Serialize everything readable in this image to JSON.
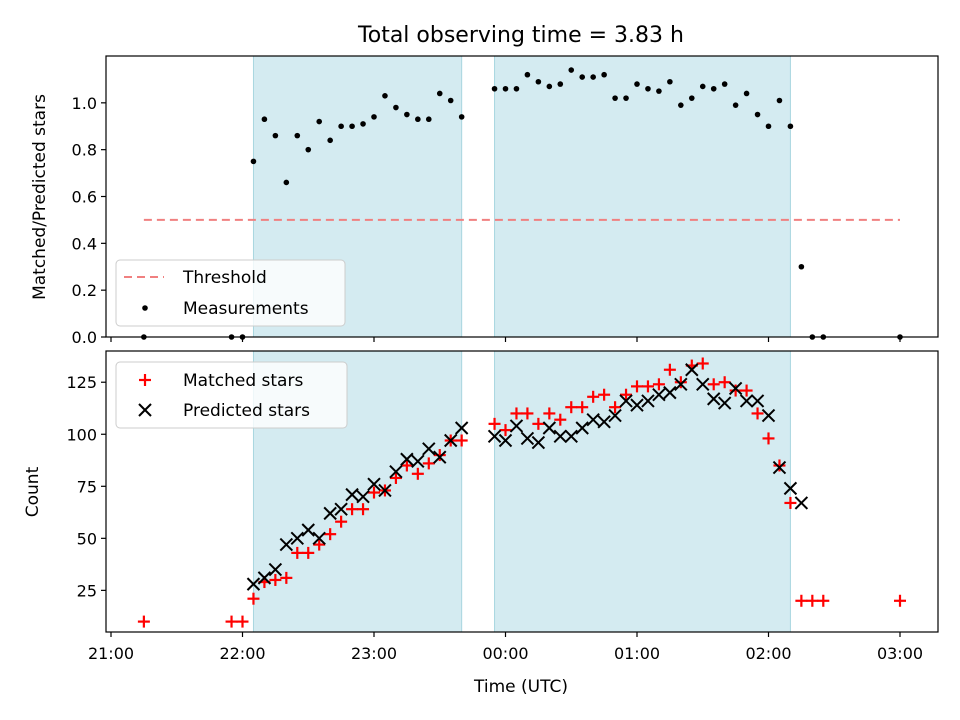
{
  "chart_data": [
    {
      "type": "scatter",
      "title": "Total observing time = 3.83 h",
      "xlabel": "",
      "ylabel": "Matched/Predicted stars",
      "ylim": [
        0,
        1.2
      ],
      "yticks": [
        0.0,
        0.2,
        0.4,
        0.6,
        0.8,
        1.0
      ],
      "ytick_labels": [
        "0.0",
        "0.2",
        "0.4",
        "0.6",
        "0.8",
        "1.0"
      ],
      "xlim": [
        "21:00",
        "03:00"
      ],
      "xticks": [],
      "grid": false,
      "legend_position": "lower-left",
      "observing_windows": [
        [
          "22:05",
          "23:40"
        ],
        [
          "23:55",
          "02:10"
        ]
      ],
      "threshold": {
        "name": "Threshold",
        "value": 0.5,
        "x_range": [
          "21:15",
          "03:00"
        ],
        "color": "#f08080",
        "style": "dashed"
      },
      "series": [
        {
          "name": "Measurements",
          "marker": "dot",
          "color": "#000000",
          "points": [
            [
              "21:15",
              0.0
            ],
            [
              "21:55",
              0.0
            ],
            [
              "22:00",
              0.0
            ],
            [
              "22:05",
              0.75
            ],
            [
              "22:10",
              0.93
            ],
            [
              "22:15",
              0.86
            ],
            [
              "22:20",
              0.66
            ],
            [
              "22:25",
              0.86
            ],
            [
              "22:30",
              0.8
            ],
            [
              "22:35",
              0.92
            ],
            [
              "22:40",
              0.84
            ],
            [
              "22:45",
              0.9
            ],
            [
              "22:50",
              0.9
            ],
            [
              "22:55",
              0.91
            ],
            [
              "23:00",
              0.94
            ],
            [
              "23:05",
              1.03
            ],
            [
              "23:10",
              0.98
            ],
            [
              "23:15",
              0.95
            ],
            [
              "23:20",
              0.93
            ],
            [
              "23:25",
              0.93
            ],
            [
              "23:30",
              1.04
            ],
            [
              "23:35",
              1.01
            ],
            [
              "23:40",
              0.94
            ],
            [
              "23:55",
              1.06
            ],
            [
              "00:00",
              1.06
            ],
            [
              "00:05",
              1.06
            ],
            [
              "00:10",
              1.12
            ],
            [
              "00:15",
              1.09
            ],
            [
              "00:20",
              1.07
            ],
            [
              "00:25",
              1.08
            ],
            [
              "00:30",
              1.14
            ],
            [
              "00:35",
              1.11
            ],
            [
              "00:40",
              1.11
            ],
            [
              "00:45",
              1.12
            ],
            [
              "00:50",
              1.02
            ],
            [
              "00:55",
              1.02
            ],
            [
              "01:00",
              1.08
            ],
            [
              "01:05",
              1.06
            ],
            [
              "01:10",
              1.05
            ],
            [
              "01:15",
              1.09
            ],
            [
              "01:20",
              0.99
            ],
            [
              "01:25",
              1.02
            ],
            [
              "01:30",
              1.07
            ],
            [
              "01:35",
              1.06
            ],
            [
              "01:40",
              1.08
            ],
            [
              "01:45",
              0.99
            ],
            [
              "01:50",
              1.04
            ],
            [
              "01:55",
              0.95
            ],
            [
              "02:00",
              0.9
            ],
            [
              "02:05",
              1.01
            ],
            [
              "02:10",
              0.9
            ],
            [
              "02:15",
              0.3
            ],
            [
              "02:20",
              0.0
            ],
            [
              "02:25",
              0.0
            ],
            [
              "03:00",
              0.0
            ]
          ]
        }
      ]
    },
    {
      "type": "scatter",
      "title": "",
      "xlabel": "Time (UTC)",
      "ylabel": "Count",
      "ylim": [
        5,
        140
      ],
      "yticks": [
        25,
        50,
        75,
        100,
        125
      ],
      "ytick_labels": [
        "25",
        "50",
        "75",
        "100",
        "125"
      ],
      "xlim": [
        "21:00",
        "03:00"
      ],
      "xticks": [
        "21:00",
        "22:00",
        "23:00",
        "00:00",
        "01:00",
        "02:00",
        "03:00"
      ],
      "grid": false,
      "legend_position": "upper-left",
      "observing_windows": [
        [
          "22:05",
          "23:40"
        ],
        [
          "23:55",
          "02:10"
        ]
      ],
      "series": [
        {
          "name": "Matched stars",
          "marker": "plus",
          "color": "#ff0000",
          "points": [
            [
              "21:15",
              10
            ],
            [
              "21:55",
              10
            ],
            [
              "22:00",
              10
            ],
            [
              "22:05",
              21
            ],
            [
              "22:10",
              29
            ],
            [
              "22:15",
              30
            ],
            [
              "22:20",
              31
            ],
            [
              "22:25",
              43
            ],
            [
              "22:30",
              43
            ],
            [
              "22:35",
              47
            ],
            [
              "22:40",
              52
            ],
            [
              "22:45",
              58
            ],
            [
              "22:50",
              64
            ],
            [
              "22:55",
              64
            ],
            [
              "23:00",
              72
            ],
            [
              "23:05",
              73
            ],
            [
              "23:10",
              79
            ],
            [
              "23:15",
              85
            ],
            [
              "23:20",
              81
            ],
            [
              "23:25",
              86
            ],
            [
              "23:30",
              90
            ],
            [
              "23:35",
              97
            ],
            [
              "23:40",
              97
            ],
            [
              "23:55",
              105
            ],
            [
              "00:00",
              102
            ],
            [
              "00:05",
              110
            ],
            [
              "00:10",
              110
            ],
            [
              "00:15",
              105
            ],
            [
              "00:20",
              110
            ],
            [
              "00:25",
              107
            ],
            [
              "00:30",
              113
            ],
            [
              "00:35",
              113
            ],
            [
              "00:40",
              118
            ],
            [
              "00:45",
              119
            ],
            [
              "00:50",
              113
            ],
            [
              "00:55",
              119
            ],
            [
              "01:00",
              123
            ],
            [
              "01:05",
              123
            ],
            [
              "01:10",
              124
            ],
            [
              "01:15",
              131
            ],
            [
              "01:20",
              125
            ],
            [
              "01:25",
              133
            ],
            [
              "01:30",
              134
            ],
            [
              "01:35",
              124
            ],
            [
              "01:40",
              125
            ],
            [
              "01:45",
              121
            ],
            [
              "01:50",
              121
            ],
            [
              "01:55",
              110
            ],
            [
              "02:00",
              98
            ],
            [
              "02:05",
              85
            ],
            [
              "02:10",
              67
            ],
            [
              "02:15",
              20
            ],
            [
              "02:20",
              20
            ],
            [
              "02:25",
              20
            ],
            [
              "03:00",
              20
            ]
          ]
        },
        {
          "name": "Predicted stars",
          "marker": "x",
          "color": "#000000",
          "points": [
            [
              "22:05",
              28
            ],
            [
              "22:10",
              31
            ],
            [
              "22:15",
              35
            ],
            [
              "22:20",
              47
            ],
            [
              "22:25",
              50
            ],
            [
              "22:30",
              54
            ],
            [
              "22:35",
              50
            ],
            [
              "22:40",
              62
            ],
            [
              "22:45",
              64
            ],
            [
              "22:50",
              71
            ],
            [
              "22:55",
              70
            ],
            [
              "23:00",
              76
            ],
            [
              "23:05",
              73
            ],
            [
              "23:10",
              82
            ],
            [
              "23:15",
              88
            ],
            [
              "23:20",
              87
            ],
            [
              "23:25",
              93
            ],
            [
              "23:30",
              89
            ],
            [
              "23:35",
              97
            ],
            [
              "23:40",
              103
            ],
            [
              "23:55",
              99
            ],
            [
              "00:00",
              97
            ],
            [
              "00:05",
              104
            ],
            [
              "00:10",
              98
            ],
            [
              "00:15",
              96
            ],
            [
              "00:20",
              103
            ],
            [
              "00:25",
              99
            ],
            [
              "00:30",
              99
            ],
            [
              "00:35",
              103
            ],
            [
              "00:40",
              107
            ],
            [
              "00:45",
              106
            ],
            [
              "00:50",
              109
            ],
            [
              "00:55",
              116
            ],
            [
              "01:00",
              114
            ],
            [
              "01:05",
              116
            ],
            [
              "01:10",
              119
            ],
            [
              "01:15",
              120
            ],
            [
              "01:20",
              124
            ],
            [
              "01:25",
              131
            ],
            [
              "01:30",
              124
            ],
            [
              "01:35",
              117
            ],
            [
              "01:40",
              115
            ],
            [
              "01:45",
              122
            ],
            [
              "01:50",
              116
            ],
            [
              "01:55",
              116
            ],
            [
              "02:00",
              109
            ],
            [
              "02:05",
              84
            ],
            [
              "02:10",
              74
            ],
            [
              "02:15",
              67
            ]
          ]
        }
      ]
    }
  ],
  "colors": {
    "window_fill": "#d4ebf1",
    "window_edge": "#a8d6e0",
    "threshold": "#f08080",
    "matched": "#ff0000",
    "predicted": "#000000",
    "measurement": "#000000"
  }
}
